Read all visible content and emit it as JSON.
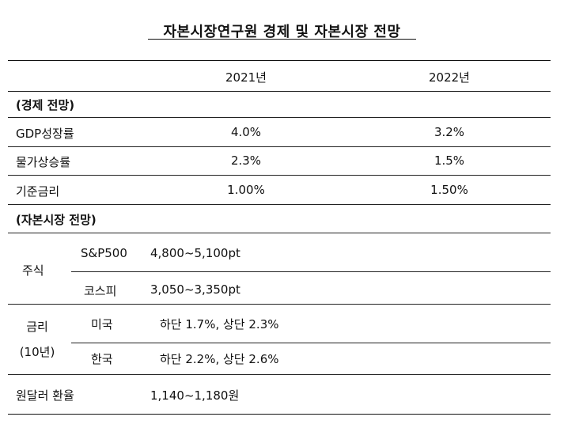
{
  "title": "자본시장연구원 경제 및 자본시장 전망",
  "columns": [
    "2021년",
    "2022년"
  ],
  "economy": {
    "heading": "(경제 전망)",
    "rows": [
      {
        "label": "GDP성장률",
        "y2021": "4.0%",
        "y2022": "3.2%"
      },
      {
        "label": "물가상승률",
        "y2021": "2.3%",
        "y2022": "1.5%"
      },
      {
        "label": "기준금리",
        "y2021": "1.00%",
        "y2022": "1.50%"
      }
    ]
  },
  "capital": {
    "heading": "(자본시장 전망)",
    "stocks": {
      "label": "주식",
      "rows": [
        {
          "name": "S&P500",
          "value": "4,800~5,100pt"
        },
        {
          "name": "코스피",
          "value": "3,050~3,350pt"
        }
      ]
    },
    "rates": {
      "label_line1": "금리",
      "label_line2": "(10년)",
      "rows": [
        {
          "name": "미국",
          "value": "하단 1.7%, 상단 2.3%"
        },
        {
          "name": "한국",
          "value": "하단 2.2%, 상단 2.6%"
        }
      ]
    },
    "fx": {
      "label": "원달러 환율",
      "value": "1,140~1,180원"
    }
  }
}
